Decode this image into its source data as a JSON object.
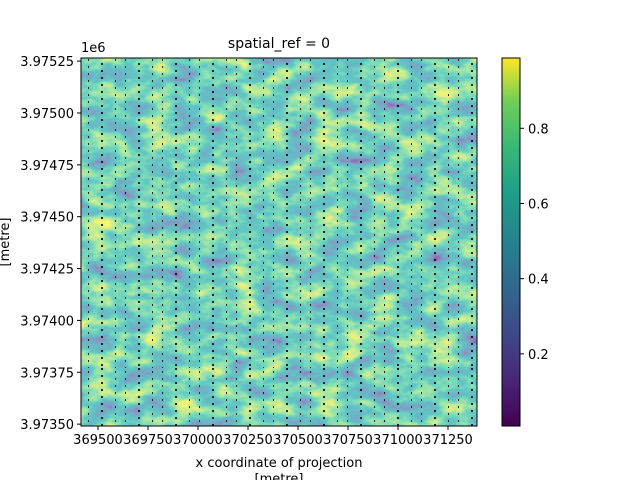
{
  "chart_data": {
    "type": "heatmap",
    "title": "spatial_ref = 0",
    "xlabel": [
      "x coordinate of projection",
      "[metre]"
    ],
    "ylabel": [
      "[metre]"
    ],
    "y_offset_label": "1e6",
    "xlim": [
      369415,
      371395
    ],
    "xticks": [
      369500,
      369750,
      370000,
      370250,
      370500,
      370750,
      371000,
      371250
    ],
    "ylim": [
      3973491,
      3975265
    ],
    "yticks": [
      {
        "value": 3973500,
        "label": "3.97350"
      },
      {
        "value": 3973750,
        "label": "3.97375"
      },
      {
        "value": 3974000,
        "label": "3.97400"
      },
      {
        "value": 3974250,
        "label": "3.97425"
      },
      {
        "value": 3974500,
        "label": "3.97450"
      },
      {
        "value": 3974750,
        "label": "3.97475"
      },
      {
        "value": 3975000,
        "label": "3.97500"
      },
      {
        "value": 3975250,
        "label": "3.97525"
      }
    ],
    "colormap": "viridis",
    "clim": [
      0.008,
      0.987
    ],
    "cticks": [
      0.2,
      0.4,
      0.6,
      0.8
    ]
  }
}
